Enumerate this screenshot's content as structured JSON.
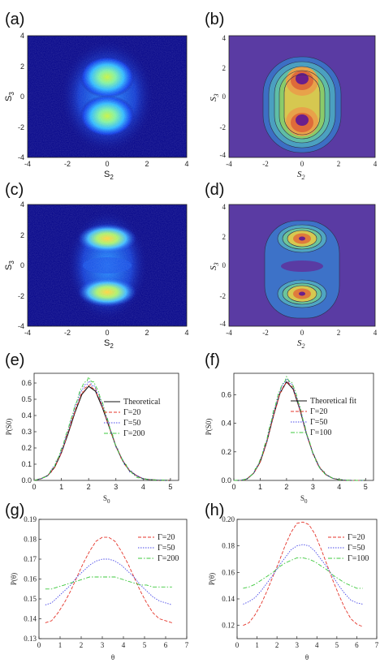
{
  "panel_labels": [
    "(a)",
    "(b)",
    "(c)",
    "(d)",
    "(e)",
    "(f)",
    "(g)",
    "(h)"
  ],
  "colors": {
    "heatmap_bg": "#000087",
    "contour_bg": "#5a3ba3",
    "theoretical": "#111111",
    "gamma_20": "#e5352b",
    "gamma_50": "#4a4ae8",
    "gamma_high": "#3cc83c"
  },
  "chart_data": [
    {
      "panel": "(a)",
      "type": "heatmap",
      "xlabel": "S2",
      "ylabel": "S3",
      "xlabel_main": "S",
      "xlabel_sub": "2",
      "ylabel_main": "S",
      "ylabel_sub": "3",
      "xticks": [
        "-4",
        "-2",
        "0",
        "2",
        "4"
      ],
      "yticks": [
        "4",
        "2",
        "0",
        "-2",
        "-4"
      ],
      "xlim": [
        -4,
        4
      ],
      "ylim": [
        -4,
        4
      ],
      "description_values": {
        "peaks_at_s3": [
          1.5,
          -1.5
        ],
        "spread_s2": 1.5
      }
    },
    {
      "panel": "(b)",
      "type": "heatmap",
      "xlabel": "S2",
      "ylabel": "S3",
      "xlabel_main": "S",
      "xlabel_sub": "2",
      "ylabel_main": "S",
      "ylabel_sub": "3",
      "xticks": [
        "-4",
        "-2",
        "0",
        "2",
        "4"
      ],
      "yticks": [
        "4",
        "2",
        "0",
        "-2",
        "-4"
      ],
      "xlim": [
        -4,
        4
      ],
      "ylim": [
        -4,
        4
      ],
      "description_values": {
        "peaks_at_s3": [
          1.3,
          -1.3
        ]
      }
    },
    {
      "panel": "(c)",
      "type": "heatmap",
      "xlabel": "S2",
      "ylabel": "S3",
      "xlabel_main": "S",
      "xlabel_sub": "2",
      "ylabel_main": "S",
      "ylabel_sub": "3",
      "xticks": [
        "-4",
        "-2",
        "0",
        "2",
        "4"
      ],
      "yticks": [
        "4",
        "2",
        "0",
        "-2",
        "-4"
      ],
      "xlim": [
        -4,
        4
      ],
      "ylim": [
        -4,
        4
      ],
      "description_values": {
        "peaks_at_s3": [
          1.9,
          -1.9
        ]
      }
    },
    {
      "panel": "(d)",
      "type": "heatmap",
      "xlabel": "S2",
      "ylabel": "S3",
      "xlabel_main": "S",
      "xlabel_sub": "2",
      "ylabel_main": "S",
      "ylabel_sub": "3",
      "xticks": [
        "-4",
        "-2",
        "0",
        "2",
        "4"
      ],
      "yticks": [
        "4",
        "2",
        "0",
        "-2",
        "-4"
      ],
      "xlim": [
        -4,
        4
      ],
      "ylim": [
        -4,
        4
      ],
      "description_values": {
        "peaks_at_s3": [
          1.9,
          -1.9
        ]
      }
    },
    {
      "panel": "(e)",
      "type": "line",
      "xlabel": "S0",
      "ylabel": "P(S0)",
      "xlabel_main": "S",
      "xlabel_sub": "0",
      "xlim": [
        0,
        5.3
      ],
      "ylim": [
        0,
        0.66
      ],
      "xticks": [
        0,
        1,
        2,
        3,
        4,
        5
      ],
      "yticks": [
        0.0,
        0.1,
        0.2,
        0.3,
        0.4,
        0.5,
        0.6
      ],
      "ytick_labels": [
        "0.0",
        "0.1",
        "0.2",
        "0.3",
        "0.4",
        "0.5",
        "0.6"
      ],
      "x": [
        0,
        0.25,
        0.5,
        0.75,
        1.0,
        1.25,
        1.5,
        1.75,
        2.0,
        2.25,
        2.5,
        2.75,
        3.0,
        3.25,
        3.5,
        3.75,
        4.0,
        4.25,
        4.5,
        4.75,
        5.0
      ],
      "series": [
        {
          "name": "Theoretical",
          "values": [
            0.0,
            0.01,
            0.03,
            0.08,
            0.17,
            0.29,
            0.42,
            0.53,
            0.58,
            0.55,
            0.45,
            0.33,
            0.21,
            0.12,
            0.06,
            0.03,
            0.01,
            0.005,
            0.002,
            0.001,
            0.0
          ]
        },
        {
          "name": "Γ=20",
          "values": [
            0.0,
            0.01,
            0.03,
            0.08,
            0.17,
            0.3,
            0.43,
            0.54,
            0.59,
            0.56,
            0.46,
            0.33,
            0.21,
            0.12,
            0.06,
            0.03,
            0.01,
            0.005,
            0.002,
            0.001,
            0.0
          ]
        },
        {
          "name": "Γ=50",
          "values": [
            0.0,
            0.01,
            0.03,
            0.09,
            0.18,
            0.31,
            0.45,
            0.56,
            0.61,
            0.57,
            0.47,
            0.34,
            0.21,
            0.12,
            0.06,
            0.03,
            0.01,
            0.005,
            0.002,
            0.001,
            0.0
          ]
        },
        {
          "name": "Γ=200",
          "values": [
            0.0,
            0.01,
            0.03,
            0.09,
            0.19,
            0.32,
            0.46,
            0.58,
            0.63,
            0.59,
            0.48,
            0.34,
            0.21,
            0.12,
            0.06,
            0.02,
            0.01,
            0.004,
            0.002,
            0.001,
            0.0
          ]
        }
      ]
    },
    {
      "panel": "(f)",
      "type": "line",
      "xlabel": "S0",
      "ylabel": "P(S0)",
      "xlabel_main": "S",
      "xlabel_sub": "0",
      "xlim": [
        0,
        5.3
      ],
      "ylim": [
        0,
        0.75
      ],
      "xticks": [
        0,
        1,
        2,
        3,
        4,
        5
      ],
      "yticks": [
        0.0,
        0.2,
        0.4,
        0.6
      ],
      "ytick_labels": [
        "0.0",
        "0.2",
        "0.4",
        "0.6"
      ],
      "x": [
        0,
        0.25,
        0.5,
        0.75,
        1.0,
        1.25,
        1.5,
        1.75,
        2.0,
        2.25,
        2.5,
        2.75,
        3.0,
        3.25,
        3.5,
        3.75,
        4.0,
        4.25,
        4.5,
        4.75,
        5.0
      ],
      "series": [
        {
          "name": "Theoretical fit",
          "values": [
            0.0,
            0.0,
            0.01,
            0.05,
            0.13,
            0.27,
            0.45,
            0.61,
            0.69,
            0.64,
            0.5,
            0.33,
            0.19,
            0.09,
            0.04,
            0.015,
            0.005,
            0.001,
            0.0,
            0.0,
            0.0
          ]
        },
        {
          "name": "Γ=20",
          "values": [
            0.0,
            0.0,
            0.01,
            0.05,
            0.13,
            0.27,
            0.45,
            0.61,
            0.69,
            0.65,
            0.5,
            0.33,
            0.19,
            0.09,
            0.04,
            0.015,
            0.005,
            0.001,
            0.0,
            0.0,
            0.0
          ]
        },
        {
          "name": "Γ=50",
          "values": [
            0.0,
            0.0,
            0.01,
            0.05,
            0.14,
            0.28,
            0.47,
            0.63,
            0.71,
            0.66,
            0.51,
            0.33,
            0.19,
            0.09,
            0.04,
            0.015,
            0.005,
            0.001,
            0.0,
            0.0,
            0.0
          ]
        },
        {
          "name": "Γ=100",
          "values": [
            0.0,
            0.0,
            0.01,
            0.05,
            0.14,
            0.29,
            0.48,
            0.64,
            0.72,
            0.67,
            0.52,
            0.34,
            0.19,
            0.09,
            0.04,
            0.015,
            0.005,
            0.001,
            0.0,
            0.0,
            0.0
          ]
        }
      ]
    },
    {
      "panel": "(g)",
      "type": "line",
      "xlabel": "θ",
      "ylabel": "P(θ)",
      "xlim": [
        0,
        7
      ],
      "ylim": [
        0.13,
        0.19
      ],
      "xticks": [
        0,
        1,
        2,
        3,
        4,
        5,
        6,
        7
      ],
      "yticks": [
        0.13,
        0.14,
        0.15,
        0.16,
        0.17,
        0.18,
        0.19
      ],
      "ytick_labels": [
        "0.13",
        "0.14",
        "0.15",
        "0.16",
        "0.17",
        "0.18",
        "0.19"
      ],
      "x": [
        0.3,
        0.6,
        0.9,
        1.2,
        1.5,
        1.8,
        2.1,
        2.4,
        2.7,
        3.0,
        3.3,
        3.6,
        3.9,
        4.2,
        4.5,
        4.8,
        5.1,
        5.4,
        5.7,
        6.0,
        6.3
      ],
      "series": [
        {
          "name": "Γ=20",
          "values": [
            0.138,
            0.139,
            0.143,
            0.148,
            0.154,
            0.161,
            0.168,
            0.174,
            0.179,
            0.181,
            0.181,
            0.179,
            0.174,
            0.168,
            0.161,
            0.154,
            0.148,
            0.143,
            0.14,
            0.139,
            0.138
          ]
        },
        {
          "name": "Γ=50",
          "values": [
            0.147,
            0.148,
            0.151,
            0.154,
            0.157,
            0.161,
            0.164,
            0.167,
            0.169,
            0.17,
            0.17,
            0.169,
            0.167,
            0.164,
            0.161,
            0.157,
            0.154,
            0.151,
            0.149,
            0.148,
            0.147
          ]
        },
        {
          "name": "Γ=200",
          "values": [
            0.155,
            0.155,
            0.156,
            0.157,
            0.158,
            0.159,
            0.16,
            0.161,
            0.161,
            0.161,
            0.161,
            0.161,
            0.16,
            0.159,
            0.158,
            0.157,
            0.157,
            0.156,
            0.156,
            0.156,
            0.156
          ]
        }
      ]
    },
    {
      "panel": "(h)",
      "type": "line",
      "xlabel": "θ",
      "ylabel": "P(θ)",
      "xlim": [
        0,
        7
      ],
      "ylim": [
        0.11,
        0.2
      ],
      "xticks": [
        0,
        1,
        2,
        3,
        4,
        5,
        6,
        7
      ],
      "yticks": [
        0.12,
        0.14,
        0.16,
        0.18,
        0.2
      ],
      "ytick_labels": [
        "0.12",
        "0.14",
        "0.16",
        "0.18",
        "0.20"
      ],
      "x": [
        0.3,
        0.6,
        0.9,
        1.2,
        1.5,
        1.8,
        2.1,
        2.4,
        2.7,
        3.0,
        3.3,
        3.6,
        3.9,
        4.2,
        4.5,
        4.8,
        5.1,
        5.4,
        5.7,
        6.0,
        6.3
      ],
      "series": [
        {
          "name": "Γ=20",
          "values": [
            0.12,
            0.122,
            0.128,
            0.136,
            0.146,
            0.157,
            0.168,
            0.18,
            0.19,
            0.197,
            0.198,
            0.196,
            0.189,
            0.178,
            0.166,
            0.154,
            0.143,
            0.133,
            0.125,
            0.121,
            0.119
          ]
        },
        {
          "name": "Γ=50",
          "values": [
            0.136,
            0.138,
            0.141,
            0.146,
            0.152,
            0.158,
            0.165,
            0.171,
            0.177,
            0.18,
            0.181,
            0.18,
            0.176,
            0.17,
            0.164,
            0.157,
            0.15,
            0.144,
            0.139,
            0.137,
            0.136
          ]
        },
        {
          "name": "Γ=100",
          "values": [
            0.148,
            0.149,
            0.151,
            0.154,
            0.157,
            0.16,
            0.164,
            0.167,
            0.169,
            0.171,
            0.171,
            0.17,
            0.168,
            0.165,
            0.162,
            0.158,
            0.155,
            0.152,
            0.15,
            0.148,
            0.148
          ]
        }
      ]
    }
  ]
}
